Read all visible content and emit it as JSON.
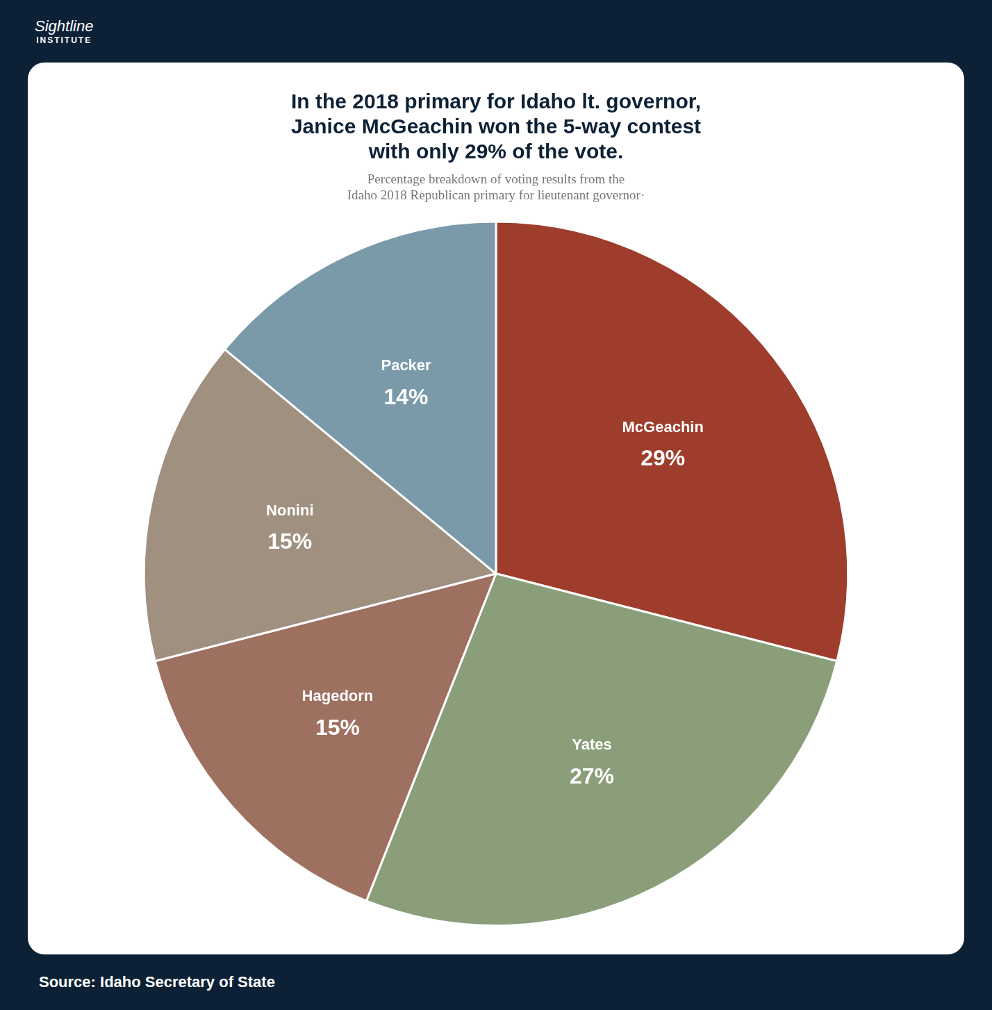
{
  "chart_data": {
    "type": "pie",
    "title": [
      "In the 2018 primary for Idaho lt. governor,",
      "Janice McGeachin won the 5-way contest",
      "with only 29% of the vote."
    ],
    "subtitle": [
      "Percentage breakdown of voting results from the",
      "Idaho 2018 Republican primary for lieutenant governor·"
    ],
    "annotations": [
      "Sightline",
      "INSTITUTE",
      "Source: Idaho Secretary of State"
    ],
    "categories": [
      "McGeachin",
      "Yates",
      "Hagedorn",
      "Nonini",
      "Packer"
    ],
    "values": [
      29,
      27,
      15,
      15,
      14
    ],
    "value_labels": [
      "29%",
      "27%",
      "15%",
      "15%",
      "14%"
    ],
    "colors": [
      "#9e3d2b",
      "#8b9e7a",
      "#9e7060",
      "#a09080",
      "#7a9aaa"
    ],
    "data_labels": true,
    "legend": false
  }
}
